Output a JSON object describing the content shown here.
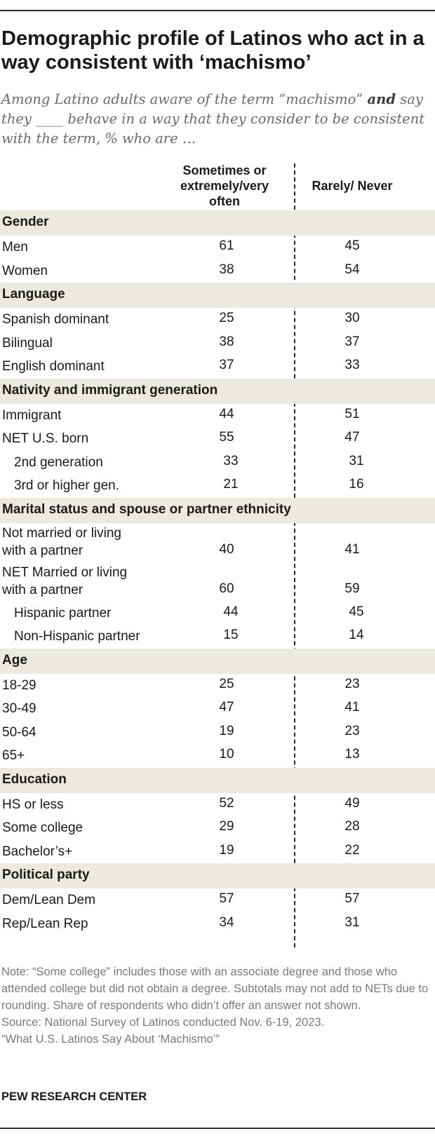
{
  "title": "Demographic profile of Latinos who act in a way consistent with ‘machismo’",
  "subtitle": {
    "part1": "Among Latino adults aware of the term “machismo” ",
    "bold": "and",
    "part2": " say they ____ behave in a way that they consider to be consistent with the term, % who are …"
  },
  "columns": {
    "col1": "Sometimes or extremely/very often",
    "col2": "Rarely/ Never"
  },
  "chart_data": {
    "type": "table",
    "columns": [
      "Sometimes or extremely/very often",
      "Rarely/ Never"
    ],
    "sections": [
      {
        "name": "Gender",
        "rows": [
          {
            "label": "Men",
            "values": [
              61,
              45
            ]
          },
          {
            "label": "Women",
            "values": [
              38,
              54
            ]
          }
        ]
      },
      {
        "name": "Language",
        "rows": [
          {
            "label": "Spanish dominant",
            "values": [
              25,
              30
            ]
          },
          {
            "label": "Bilingual",
            "values": [
              38,
              37
            ]
          },
          {
            "label": "English dominant",
            "values": [
              37,
              33
            ]
          }
        ]
      },
      {
        "name": "Nativity and immigrant generation",
        "rows": [
          {
            "label": "Immigrant",
            "values": [
              44,
              51
            ]
          },
          {
            "label": "NET U.S. born",
            "values": [
              55,
              47
            ]
          },
          {
            "label": "2nd generation",
            "values": [
              33,
              31
            ],
            "indent": true
          },
          {
            "label": "3rd or higher gen.",
            "values": [
              21,
              16
            ],
            "indent": true
          }
        ]
      },
      {
        "name": "Marital status and spouse or partner ethnicity",
        "rows": [
          {
            "label": "Not married or living with a partner",
            "label_lines": [
              "Not married or living",
              "with a partner"
            ],
            "values": [
              40,
              41
            ]
          },
          {
            "label": "NET Married or living with a partner",
            "label_lines": [
              "NET Married or living",
              "with a partner"
            ],
            "values": [
              60,
              59
            ]
          },
          {
            "label": "Hispanic partner",
            "values": [
              44,
              45
            ],
            "indent": true
          },
          {
            "label": "Non-Hispanic partner",
            "values": [
              15,
              14
            ],
            "indent": true
          }
        ]
      },
      {
        "name": "Age",
        "rows": [
          {
            "label": "18-29",
            "values": [
              25,
              23
            ]
          },
          {
            "label": "30-49",
            "values": [
              47,
              41
            ]
          },
          {
            "label": "50-64",
            "values": [
              19,
              23
            ]
          },
          {
            "label": "65+",
            "values": [
              10,
              13
            ]
          }
        ]
      },
      {
        "name": "Education",
        "rows": [
          {
            "label": "HS or less",
            "values": [
              52,
              49
            ]
          },
          {
            "label": "Some college",
            "values": [
              29,
              28
            ]
          },
          {
            "label": "Bachelor’s+",
            "values": [
              19,
              22
            ]
          }
        ]
      },
      {
        "name": "Political party",
        "rows": [
          {
            "label": "Dem/Lean Dem",
            "values": [
              57,
              57
            ]
          },
          {
            "label": "Rep/Lean Rep",
            "values": [
              34,
              31
            ]
          }
        ]
      }
    ]
  },
  "notes": {
    "note": "Note: “Some college” includes those with an associate degree and those who attended college but did not obtain a degree. Subtotals may not add to NETs due to rounding. Share of respondents who didn’t offer an answer not shown.",
    "source": "Source: National Survey of Latinos conducted Nov. 6-19, 2023.",
    "report": "“What U.S. Latinos Say About ‘Machismo’”"
  },
  "brand": "PEW RESEARCH CENTER",
  "colors": {
    "section_band": "#ece9e1",
    "text": "#1a1a1a",
    "note_text": "#7a7a7a"
  }
}
